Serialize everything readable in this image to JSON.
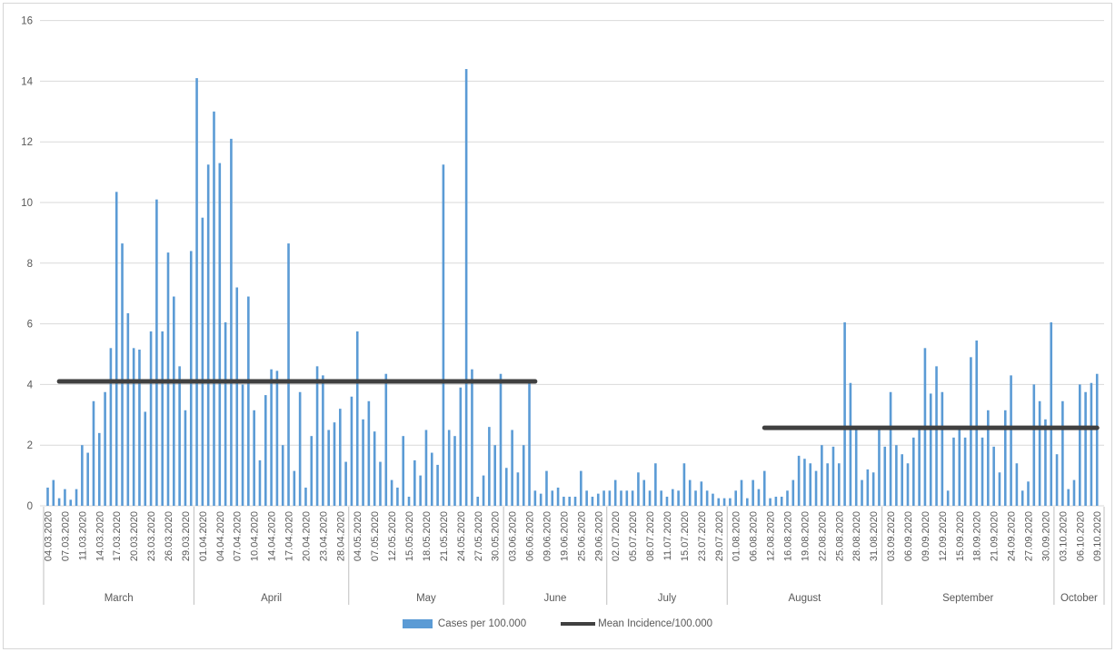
{
  "figure": {
    "background": "#FFFFFF",
    "border_color": "#D6D6D6"
  },
  "legend": {
    "items": [
      {
        "label": "Cases per 100.000",
        "swatch": "bar",
        "color": "#5B9BD5"
      },
      {
        "label": "Mean Incidence/100.000",
        "swatch": "line",
        "color": "#404040"
      }
    ]
  },
  "chart_data": {
    "type": "bar",
    "title": "",
    "xlabel": "",
    "ylabel": "",
    "ylim": [
      0,
      16
    ],
    "y_ticks": [
      0,
      2,
      4,
      6,
      8,
      10,
      12,
      14,
      16
    ],
    "grid": true,
    "legend_position": "bottom",
    "bar_color": "#5B9BD5",
    "gridline_color": "#D9D9D9",
    "axis_text_color": "#595959",
    "series_name": "Cases per 100.000",
    "tick_label_every": 3,
    "tick_labels": [
      "04.03.2020",
      "07.03.2020",
      "11.03.2020",
      "14.03.2020",
      "17.03.2020",
      "20.03.2020",
      "23.03.2020",
      "26.03.2020",
      "29.03.2020",
      "01.04.2020",
      "04.04.2020",
      "07.04.2020",
      "10.04.2020",
      "14.04.2020",
      "17.04.2020",
      "20.04.2020",
      "23.04.2020",
      "28.04.2020",
      "04.05.2020",
      "07.05.2020",
      "12.05.2020",
      "15.05.2020",
      "18.05.2020",
      "21.05.2020",
      "24.05.2020",
      "27.05.2020",
      "30.05.2020",
      "03.06.2020",
      "06.06.2020",
      "09.06.2020",
      "19.06.2020",
      "25.06.2020",
      "29.06.2020",
      "02.07.2020",
      "05.07.2020",
      "08.07.2020",
      "11.07.2020",
      "15.07.2020",
      "23.07.2020",
      "29.07.2020",
      "01.08.2020",
      "06.08.2020",
      "12.08.2020",
      "16.08.2020",
      "19.08.2020",
      "22.08.2020",
      "25.08.2020",
      "28.08.2020",
      "31.08.2020",
      "03.09.2020",
      "06.09.2020",
      "09.09.2020",
      "12.09.2020",
      "15.09.2020",
      "18.09.2020",
      "21.09.2020",
      "24.09.2020",
      "27.09.2020",
      "30.09.2020",
      "03.10.2020",
      "06.10.2020",
      "09.10.2020"
    ],
    "month_groups": [
      {
        "label": "March",
        "ticks": 9
      },
      {
        "label": "April",
        "ticks": 9
      },
      {
        "label": "May",
        "ticks": 9
      },
      {
        "label": "June",
        "ticks": 6
      },
      {
        "label": "July",
        "ticks": 7
      },
      {
        "label": "August",
        "ticks": 9
      },
      {
        "label": "September",
        "ticks": 10
      },
      {
        "label": "October",
        "ticks": 3
      }
    ],
    "values": [
      0.6,
      0.85,
      0.25,
      0.55,
      0.2,
      0.55,
      2.0,
      1.75,
      3.45,
      2.4,
      3.75,
      5.2,
      10.35,
      8.65,
      6.35,
      5.2,
      5.15,
      3.1,
      5.75,
      10.1,
      5.75,
      8.35,
      6.9,
      4.6,
      3.15,
      8.4,
      14.1,
      9.5,
      11.25,
      13.0,
      11.3,
      6.05,
      12.1,
      7.2,
      4.0,
      6.9,
      3.15,
      1.5,
      3.65,
      4.5,
      4.45,
      2.0,
      8.65,
      1.15,
      3.75,
      0.6,
      2.3,
      4.6,
      4.3,
      2.5,
      2.75,
      3.2,
      1.45,
      3.6,
      5.75,
      2.85,
      3.45,
      2.45,
      1.45,
      4.35,
      0.85,
      0.6,
      2.3,
      0.3,
      1.5,
      1.0,
      2.5,
      1.75,
      1.35,
      11.25,
      2.5,
      2.3,
      3.9,
      14.4,
      4.5,
      0.3,
      1.0,
      2.6,
      2.0,
      4.35,
      1.25,
      2.5,
      1.1,
      2.0,
      4.1,
      0.5,
      0.4,
      1.15,
      0.5,
      0.6,
      0.3,
      0.3,
      0.3,
      1.15,
      0.5,
      0.3,
      0.4,
      0.5,
      0.5,
      0.85,
      0.5,
      0.5,
      0.5,
      1.1,
      0.85,
      0.5,
      1.4,
      0.5,
      0.3,
      0.55,
      0.5,
      1.4,
      0.85,
      0.5,
      0.8,
      0.5,
      0.4,
      0.25,
      0.25,
      0.25,
      0.5,
      0.85,
      0.25,
      0.85,
      0.55,
      1.15,
      0.25,
      0.3,
      0.3,
      0.5,
      0.85,
      1.65,
      1.55,
      1.4,
      1.15,
      2.0,
      1.4,
      1.95,
      1.4,
      6.05,
      4.05,
      2.5,
      0.85,
      1.2,
      1.1,
      2.5,
      1.95,
      3.75,
      2.0,
      1.7,
      1.4,
      2.25,
      2.5,
      5.2,
      3.7,
      4.6,
      3.75,
      0.5,
      2.25,
      2.5,
      2.25,
      4.9,
      5.45,
      2.25,
      3.15,
      1.95,
      1.1,
      3.15,
      4.3,
      1.4,
      0.5,
      0.8,
      4.0,
      3.45,
      2.85,
      6.05,
      1.7,
      3.45,
      0.55,
      0.85,
      4.0,
      3.75,
      4.05,
      4.35
    ],
    "mean_lines": [
      {
        "name": "Mean Incidence/100.000",
        "value": 4.1,
        "start_index": 2,
        "end_index": 85,
        "color": "#404040"
      },
      {
        "name": "Mean Incidence/100.000",
        "value": 2.57,
        "start_index": 125,
        "end_index": 183,
        "color": "#404040"
      }
    ]
  }
}
